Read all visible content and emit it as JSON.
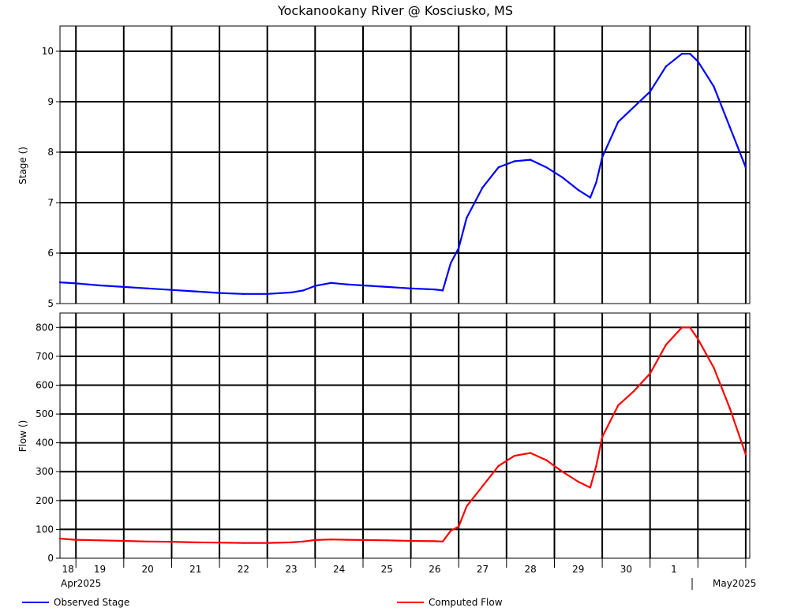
{
  "chart_data": [
    {
      "type": "line",
      "title": "Yockanookany River @ Kosciusko, MS",
      "ylabel": "Stage ()",
      "ylim": [
        5,
        10.5
      ],
      "yticks": [
        5,
        6,
        7,
        8,
        9,
        10
      ],
      "grid": true,
      "x_start": "2025-04-17T16:00",
      "x_end": "2025-05-02T02:00",
      "series": [
        {
          "name": "Observed Stage",
          "color": "#0000ff",
          "points": [
            [
              "2025-04-17T16:00",
              5.42
            ],
            [
              "2025-04-18T00:00",
              5.4
            ],
            [
              "2025-04-18T06:00",
              5.38
            ],
            [
              "2025-04-18T12:00",
              5.36
            ],
            [
              "2025-04-19T00:00",
              5.33
            ],
            [
              "2025-04-19T12:00",
              5.3
            ],
            [
              "2025-04-20T00:00",
              5.27
            ],
            [
              "2025-04-20T12:00",
              5.24
            ],
            [
              "2025-04-21T00:00",
              5.21
            ],
            [
              "2025-04-21T12:00",
              5.19
            ],
            [
              "2025-04-22T00:00",
              5.19
            ],
            [
              "2025-04-22T12:00",
              5.22
            ],
            [
              "2025-04-22T18:00",
              5.26
            ],
            [
              "2025-04-23T00:00",
              5.35
            ],
            [
              "2025-04-23T08:00",
              5.41
            ],
            [
              "2025-04-23T16:00",
              5.38
            ],
            [
              "2025-04-24T00:00",
              5.36
            ],
            [
              "2025-04-24T12:00",
              5.33
            ],
            [
              "2025-04-25T00:00",
              5.3
            ],
            [
              "2025-04-25T12:00",
              5.28
            ],
            [
              "2025-04-25T16:00",
              5.26
            ],
            [
              "2025-04-25T20:00",
              5.8
            ],
            [
              "2025-04-26T00:00",
              6.1
            ],
            [
              "2025-04-26T04:00",
              6.7
            ],
            [
              "2025-04-26T12:00",
              7.3
            ],
            [
              "2025-04-26T20:00",
              7.7
            ],
            [
              "2025-04-27T04:00",
              7.82
            ],
            [
              "2025-04-27T12:00",
              7.85
            ],
            [
              "2025-04-27T20:00",
              7.7
            ],
            [
              "2025-04-28T04:00",
              7.5
            ],
            [
              "2025-04-28T12:00",
              7.25
            ],
            [
              "2025-04-28T18:00",
              7.1
            ],
            [
              "2025-04-28T21:00",
              7.4
            ],
            [
              "2025-04-29T00:00",
              7.9
            ],
            [
              "2025-04-29T08:00",
              8.6
            ],
            [
              "2025-04-29T16:00",
              8.9
            ],
            [
              "2025-04-30T00:00",
              9.2
            ],
            [
              "2025-04-30T08:00",
              9.7
            ],
            [
              "2025-04-30T16:00",
              9.95
            ],
            [
              "2025-04-30T20:00",
              9.95
            ],
            [
              "2025-05-01T00:00",
              9.8
            ],
            [
              "2025-05-01T08:00",
              9.3
            ],
            [
              "2025-05-01T16:00",
              8.5
            ],
            [
              "2025-05-02T00:00",
              7.7
            ]
          ]
        }
      ]
    },
    {
      "type": "line",
      "ylabel": "Flow ()",
      "ylim": [
        0,
        850
      ],
      "yticks": [
        0,
        100,
        200,
        300,
        400,
        500,
        600,
        700,
        800
      ],
      "grid": true,
      "x_start": "2025-04-17T16:00",
      "x_end": "2025-05-02T02:00",
      "series": [
        {
          "name": "Computed Flow",
          "color": "#ff0000",
          "points": [
            [
              "2025-04-17T16:00",
              68
            ],
            [
              "2025-04-18T00:00",
              64
            ],
            [
              "2025-04-18T12:00",
              62
            ],
            [
              "2025-04-19T00:00",
              60
            ],
            [
              "2025-04-19T12:00",
              58
            ],
            [
              "2025-04-20T00:00",
              57
            ],
            [
              "2025-04-20T12:00",
              55
            ],
            [
              "2025-04-21T00:00",
              54
            ],
            [
              "2025-04-21T12:00",
              53
            ],
            [
              "2025-04-22T00:00",
              53
            ],
            [
              "2025-04-22T12:00",
              55
            ],
            [
              "2025-04-22T18:00",
              58
            ],
            [
              "2025-04-23T00:00",
              63
            ],
            [
              "2025-04-23T08:00",
              65
            ],
            [
              "2025-04-23T16:00",
              64
            ],
            [
              "2025-04-24T00:00",
              63
            ],
            [
              "2025-04-24T12:00",
              62
            ],
            [
              "2025-04-25T00:00",
              60
            ],
            [
              "2025-04-25T12:00",
              59
            ],
            [
              "2025-04-25T16:00",
              58
            ],
            [
              "2025-04-25T20:00",
              95
            ],
            [
              "2025-04-26T00:00",
              110
            ],
            [
              "2025-04-26T04:00",
              180
            ],
            [
              "2025-04-26T12:00",
              250
            ],
            [
              "2025-04-26T20:00",
              320
            ],
            [
              "2025-04-27T04:00",
              355
            ],
            [
              "2025-04-27T12:00",
              365
            ],
            [
              "2025-04-27T20:00",
              340
            ],
            [
              "2025-04-28T04:00",
              300
            ],
            [
              "2025-04-28T12:00",
              265
            ],
            [
              "2025-04-28T18:00",
              245
            ],
            [
              "2025-04-28T21:00",
              320
            ],
            [
              "2025-04-29T00:00",
              420
            ],
            [
              "2025-04-29T08:00",
              530
            ],
            [
              "2025-04-29T16:00",
              580
            ],
            [
              "2025-04-30T00:00",
              640
            ],
            [
              "2025-04-30T08:00",
              740
            ],
            [
              "2025-04-30T16:00",
              800
            ],
            [
              "2025-04-30T20:00",
              800
            ],
            [
              "2025-05-01T00:00",
              760
            ],
            [
              "2025-05-01T08:00",
              660
            ],
            [
              "2025-05-01T16:00",
              520
            ],
            [
              "2025-05-02T00:00",
              360
            ]
          ]
        }
      ]
    }
  ],
  "x_axis": {
    "day_labels": [
      "18",
      "19",
      "20",
      "21",
      "22",
      "23",
      "24",
      "25",
      "26",
      "27",
      "28",
      "29",
      "30",
      "1"
    ],
    "month_labels": [
      "Apr2025",
      "May2025"
    ]
  },
  "legend": [
    "Observed Stage",
    "Computed Flow"
  ]
}
